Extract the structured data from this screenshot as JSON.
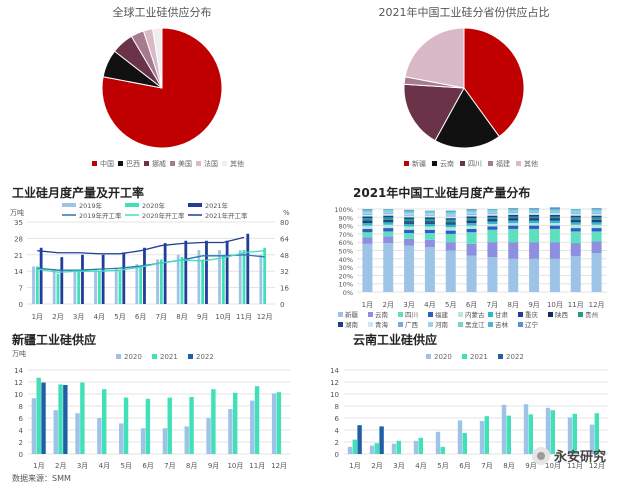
{
  "watermark": "永安研究",
  "source_note": "数据来源：SMM",
  "chart_data": [
    {
      "id": "global_pie",
      "type": "pie",
      "title": "全球工业硅供应分布",
      "categories": [
        "中国",
        "巴西",
        "挪威",
        "美国",
        "法国",
        "其他"
      ],
      "values": [
        78,
        7.5,
        6,
        3.5,
        2.5,
        2.5
      ],
      "colors": [
        "#c00000",
        "#111111",
        "#6b3348",
        "#a77b8e",
        "#d9b9c6",
        "#eeeeee"
      ]
    },
    {
      "id": "province_pie",
      "type": "pie",
      "title": "2021年中国工业硅分省份供应占比",
      "categories": [
        "新疆",
        "云南",
        "四川",
        "福建",
        "其他"
      ],
      "values": [
        40,
        18,
        18,
        2,
        22
      ],
      "colors": [
        "#c00000",
        "#111111",
        "#6b3348",
        "#a77b8e",
        "#d9b9c6"
      ]
    },
    {
      "id": "monthly_output",
      "type": "bar",
      "title": "工业硅月度产量及开工率",
      "ylabel": "万吨",
      "y2label": "%",
      "categories": [
        "1月",
        "2月",
        "3月",
        "4月",
        "5月",
        "6月",
        "7月",
        "8月",
        "9月",
        "10月",
        "11月",
        "12月"
      ],
      "ylim": [
        0,
        35
      ],
      "y2lim": [
        0,
        80
      ],
      "yticks": [
        0,
        7,
        14,
        21,
        28,
        35
      ],
      "y2ticks": [
        0,
        16,
        32,
        48,
        64,
        80
      ],
      "bar_series": [
        {
          "name": "2019年",
          "color": "#9dc3e6",
          "values": [
            16,
            15,
            14,
            15,
            15,
            17,
            19,
            21,
            23,
            23,
            23,
            21
          ]
        },
        {
          "name": "2020年",
          "color": "#40e0b8",
          "values": [
            16,
            13,
            14,
            14,
            14,
            16,
            19,
            20,
            19,
            21,
            23,
            24
          ]
        },
        {
          "name": "2021年",
          "color": "#1f3d99",
          "values": [
            24,
            20,
            21,
            21,
            22,
            24,
            26,
            27,
            27,
            27,
            30,
            null
          ]
        }
      ],
      "line_series": [
        {
          "name": "2019年开工率",
          "color": "#2e75b6",
          "values": [
            35,
            33,
            33,
            34,
            35,
            37,
            40,
            43,
            47,
            47,
            48,
            46
          ]
        },
        {
          "name": "2020年开工率",
          "color": "#40e0b8",
          "values": [
            34,
            31,
            32,
            32,
            33,
            36,
            40,
            43,
            42,
            45,
            50,
            52
          ]
        },
        {
          "name": "2021年开工率",
          "color": "#1f3d99",
          "values": [
            52,
            50,
            50,
            49,
            49,
            52,
            57,
            59,
            60,
            60,
            65,
            null
          ]
        }
      ]
    },
    {
      "id": "province_monthly",
      "type": "bar",
      "stacked": true,
      "title": "2021年中国工业硅月度产量分布",
      "categories": [
        "1月",
        "2月",
        "3月",
        "4月",
        "5月",
        "6月",
        "7月",
        "8月",
        "9月",
        "10月",
        "11月",
        "12月"
      ],
      "ylim": [
        0,
        100
      ],
      "yticks": [
        "0%",
        "10%",
        "20%",
        "30%",
        "40%",
        "50%",
        "60%",
        "70%",
        "80%",
        "90%",
        "100%"
      ],
      "series": [
        {
          "name": "新疆",
          "color": "#9dc3e6",
          "values": [
            58,
            59,
            56,
            54,
            50,
            44,
            42,
            40,
            40,
            40,
            43,
            47
          ]
        },
        {
          "name": "云南",
          "color": "#8f8fe0",
          "values": [
            8,
            8,
            8,
            9,
            10,
            14,
            18,
            20,
            20,
            20,
            16,
            14
          ]
        },
        {
          "name": "四川",
          "color": "#5ee0c0",
          "values": [
            6,
            6,
            7,
            8,
            10,
            14,
            15,
            16,
            16,
            16,
            14,
            12
          ]
        },
        {
          "name": "福建",
          "color": "#2f5cc9",
          "values": [
            4,
            4,
            4,
            4,
            4,
            4,
            4,
            4,
            4,
            4,
            4,
            4
          ]
        },
        {
          "name": "内蒙古",
          "color": "#b7e7dc",
          "values": [
            4,
            4,
            4,
            4,
            4,
            4,
            3,
            3,
            3,
            3,
            4,
            4
          ]
        },
        {
          "name": "甘肃",
          "color": "#2fb8c8",
          "values": [
            3,
            3,
            3,
            3,
            3,
            3,
            3,
            3,
            3,
            3,
            3,
            3
          ]
        },
        {
          "name": "重庆",
          "color": "#1f3d99",
          "values": [
            2,
            2,
            2,
            2,
            2,
            2,
            2,
            2,
            2,
            2,
            2,
            2
          ]
        },
        {
          "name": "陕西",
          "color": "#102a6b",
          "values": [
            1,
            1,
            1,
            1,
            1,
            1,
            1,
            1,
            1,
            1,
            1,
            1
          ]
        },
        {
          "name": "贵州",
          "color": "#1fa085",
          "values": [
            3,
            3,
            3,
            3,
            3,
            3,
            2,
            2,
            2,
            2,
            3,
            3
          ]
        },
        {
          "name": "湖南",
          "color": "#1a3f8a",
          "values": [
            2,
            2,
            2,
            2,
            2,
            2,
            2,
            2,
            2,
            2,
            2,
            2
          ]
        },
        {
          "name": "青海",
          "color": "#cde8f5",
          "values": [
            2,
            2,
            2,
            2,
            2,
            2,
            2,
            2,
            2,
            2,
            2,
            2
          ]
        },
        {
          "name": "广西",
          "color": "#7fa7e8",
          "values": [
            1,
            1,
            1,
            1,
            1,
            1,
            1,
            1,
            1,
            1,
            1,
            1
          ]
        },
        {
          "name": "河南",
          "color": "#9ad0f0",
          "values": [
            2,
            2,
            2,
            2,
            2,
            2,
            2,
            1,
            1,
            1,
            2,
            2
          ]
        },
        {
          "name": "黑龙江",
          "color": "#7dd0c4",
          "values": [
            2,
            2,
            2,
            2,
            2,
            2,
            2,
            2,
            2,
            2,
            2,
            2
          ]
        },
        {
          "name": "吉林",
          "color": "#4fb2d8",
          "values": [
            1,
            1,
            1,
            1,
            1,
            1,
            1,
            1,
            1,
            1,
            1,
            1
          ]
        },
        {
          "name": "辽宁",
          "color": "#5a8fd6",
          "values": [
            1,
            0,
            1,
            0,
            1,
            1,
            0,
            1,
            1,
            2,
            0,
            1
          ]
        }
      ]
    },
    {
      "id": "xinjiang",
      "type": "bar",
      "title": "新疆工业硅供应",
      "ylabel": "万吨",
      "categories": [
        "1月",
        "2月",
        "3月",
        "4月",
        "5月",
        "6月",
        "7月",
        "8月",
        "9月",
        "10月",
        "11月",
        "12月"
      ],
      "ylim": [
        0,
        14
      ],
      "yticks": [
        0,
        2,
        4,
        6,
        8,
        10,
        12,
        14
      ],
      "series": [
        {
          "name": "2020",
          "color": "#9dc3e6",
          "values": [
            9.3,
            7.3,
            6.8,
            6.0,
            5.1,
            4.3,
            4.3,
            4.6,
            6.0,
            7.5,
            8.9,
            10.1
          ]
        },
        {
          "name": "2021",
          "color": "#40e0b8",
          "values": [
            12.7,
            11.6,
            11.9,
            10.8,
            9.4,
            9.2,
            9.4,
            9.5,
            10.8,
            10.2,
            11.3,
            10.3
          ]
        },
        {
          "name": "2022",
          "color": "#1f5fa8",
          "values": [
            11.9,
            11.5,
            null,
            null,
            null,
            null,
            null,
            null,
            null,
            null,
            null,
            null
          ]
        }
      ]
    },
    {
      "id": "yunnan",
      "type": "bar",
      "title": "云南工业硅供应",
      "categories": [
        "1月",
        "2月",
        "3月",
        "4月",
        "5月",
        "6月",
        "7月",
        "8月",
        "9月",
        "10月",
        "11月",
        "12月"
      ],
      "ylim": [
        0,
        14
      ],
      "yticks": [
        0,
        2,
        4,
        6,
        8,
        10,
        12,
        14
      ],
      "series": [
        {
          "name": "2020",
          "color": "#9dc3e6",
          "values": [
            1.2,
            1.4,
            1.7,
            2.2,
            3.7,
            5.6,
            5.5,
            8.2,
            8.3,
            7.7,
            6.1,
            4.9
          ]
        },
        {
          "name": "2021",
          "color": "#40e0b8",
          "values": [
            2.4,
            1.8,
            2.2,
            2.7,
            1.2,
            3.5,
            6.3,
            6.4,
            6.6,
            7.3,
            6.7,
            6.8
          ]
        },
        {
          "name": "2022",
          "color": "#1f5fa8",
          "values": [
            4.8,
            4.6,
            null,
            null,
            null,
            null,
            null,
            null,
            null,
            null,
            null,
            null
          ]
        }
      ]
    }
  ]
}
